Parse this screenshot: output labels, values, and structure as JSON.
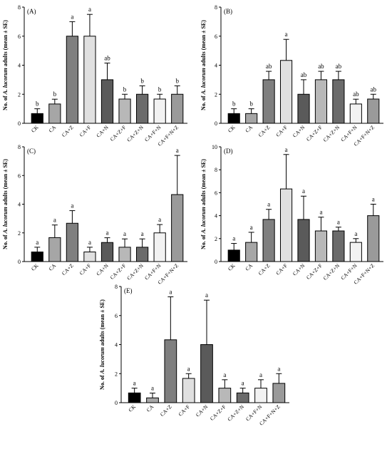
{
  "colors": {
    "bar_fills": [
      "#000000",
      "#a6a6a6",
      "#7f7f7f",
      "#e0e0e0",
      "#5a5a5a",
      "#b8b8b8",
      "#6b6b6b",
      "#f2f2f2",
      "#9a9a9a"
    ],
    "axis": "#000000"
  },
  "ylabel_parts": [
    "No. of ",
    "A. lucorum",
    " adults (mean ± SE)"
  ],
  "chart_data": [
    {
      "type": "bar",
      "panel_label": "(A)",
      "categories": [
        "CK",
        "CA",
        "CA+Z",
        "CA+F",
        "CA+N",
        "CA+Z+F",
        "CA+Z+N",
        "CA+F+N",
        "CA+F+N+Z"
      ],
      "values": [
        0.67,
        1.33,
        6.0,
        6.0,
        3.0,
        1.67,
        2.0,
        1.67,
        2.0
      ],
      "errors": [
        0.33,
        0.33,
        1.0,
        1.5,
        1.15,
        0.33,
        0.58,
        0.33,
        0.58
      ],
      "letters": [
        "b",
        "b",
        "a",
        "a",
        "ab",
        "b",
        "b",
        "b",
        "b"
      ],
      "ylim": [
        0,
        8
      ],
      "yticks": [
        0,
        2,
        4,
        6,
        8
      ],
      "ylabel": "No. of A. lucorum adults (mean ± SE)"
    },
    {
      "type": "bar",
      "panel_label": "(B)",
      "categories": [
        "CK",
        "CA",
        "CA+Z",
        "CA+F",
        "CA+N",
        "CA+Z+F",
        "CA+Z+N",
        "CA+F+N",
        "CA+F+N+Z"
      ],
      "values": [
        0.67,
        0.67,
        3.0,
        4.33,
        2.0,
        3.0,
        3.0,
        1.33,
        1.67
      ],
      "errors": [
        0.33,
        0.33,
        0.58,
        1.45,
        1.0,
        0.58,
        0.58,
        0.33,
        0.33
      ],
      "letters": [
        "b",
        "b",
        "ab",
        "a",
        "ab",
        "ab",
        "ab",
        "ab",
        "ab"
      ],
      "ylim": [
        0,
        8
      ],
      "yticks": [
        0,
        2,
        4,
        6,
        8
      ],
      "ylabel": "No. of A. lucorum adults (mean ± SE)"
    },
    {
      "type": "bar",
      "panel_label": "(C)",
      "categories": [
        "CK",
        "CA",
        "CA+Z",
        "CA+F",
        "CA+N",
        "CA+Z+F",
        "CA+Z+N",
        "CA+F+N",
        "CA+F+N+Z"
      ],
      "values": [
        0.67,
        1.67,
        2.67,
        0.67,
        1.33,
        1.0,
        1.0,
        2.0,
        4.67
      ],
      "errors": [
        0.33,
        0.88,
        0.88,
        0.33,
        0.33,
        0.58,
        0.58,
        0.58,
        2.73
      ],
      "letters": [
        "a",
        "a",
        "a",
        "a",
        "a",
        "a",
        "a",
        "a",
        "a"
      ],
      "ylim": [
        0,
        8
      ],
      "yticks": [
        0,
        2,
        4,
        6,
        8
      ],
      "ylabel": "No. of A. lucorum adults (mean ± SE)"
    },
    {
      "type": "bar",
      "panel_label": "(D)",
      "categories": [
        "CK",
        "CA",
        "CA+Z",
        "CA+F",
        "CA+N",
        "CA+Z+F",
        "CA+Z+N",
        "CA+F+N",
        "CA+F+N+Z"
      ],
      "values": [
        1.0,
        1.67,
        3.67,
        6.33,
        3.67,
        2.67,
        2.67,
        1.67,
        4.0
      ],
      "errors": [
        0.58,
        0.88,
        0.88,
        3.0,
        2.03,
        1.2,
        0.33,
        0.33,
        1.0
      ],
      "letters": [
        "a",
        "a",
        "a",
        "a",
        "a",
        "a",
        "a",
        "a",
        "a"
      ],
      "ylim": [
        0,
        10
      ],
      "yticks": [
        0,
        2,
        4,
        6,
        8,
        10
      ],
      "ylabel": "No. of A. lucorum adults (mean ± SE)"
    },
    {
      "type": "bar",
      "panel_label": "(E)",
      "categories": [
        "CK",
        "CA",
        "CA+Z",
        "CA+F",
        "CA+N",
        "CA+Z+F",
        "CA+Z+N",
        "CA+F+N",
        "CA+F+N+Z"
      ],
      "values": [
        0.67,
        0.33,
        4.33,
        1.67,
        4.0,
        1.0,
        0.67,
        1.0,
        1.33
      ],
      "errors": [
        0.33,
        0.33,
        2.96,
        0.33,
        3.06,
        0.58,
        0.33,
        0.58,
        0.67
      ],
      "letters": [
        "a",
        "a",
        "a",
        "a",
        "a",
        "a",
        "a",
        "a",
        "a"
      ],
      "ylim": [
        0,
        8
      ],
      "yticks": [
        0,
        2,
        4,
        6,
        8
      ],
      "ylabel": "No. of A. lucorum adults (mean ± SE)"
    }
  ]
}
